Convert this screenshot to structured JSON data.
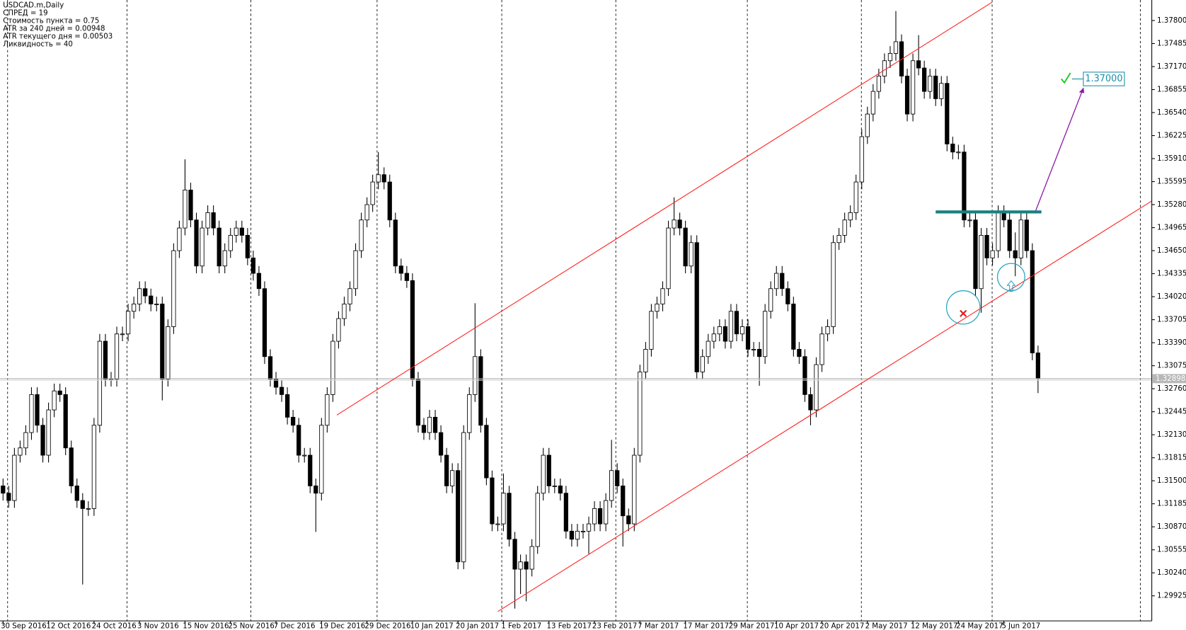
{
  "chart_data": {
    "type": "candlestick",
    "info_lines": [
      "USDCAD.m,Daily",
      "СПРЕД = 19",
      "Стоимость пункта = 0.75",
      "ATR за 240 дней = 0.00948",
      "ATR текущего дня = 0.00503",
      "Ликвидность = 40"
    ],
    "up_color": "#ffffff",
    "down_color": "#000000",
    "ylim": [
      1.29582,
      1.38081
    ],
    "yticks": [
      {
        "value": 1.378,
        "label": "1.37800"
      },
      {
        "value": 1.37485,
        "label": "1.37485"
      },
      {
        "value": 1.3717,
        "label": "1.37170"
      },
      {
        "value": 1.36855,
        "label": "1.36855"
      },
      {
        "value": 1.3654,
        "label": "1.36540"
      },
      {
        "value": 1.36225,
        "label": "1.36225"
      },
      {
        "value": 1.3591,
        "label": "1.35910"
      },
      {
        "value": 1.35595,
        "label": "1.35595"
      },
      {
        "value": 1.3528,
        "label": "1.35280"
      },
      {
        "value": 1.34965,
        "label": "1.34965"
      },
      {
        "value": 1.3465,
        "label": "1.34650"
      },
      {
        "value": 1.34335,
        "label": "1.34335"
      },
      {
        "value": 1.3402,
        "label": "1.34020"
      },
      {
        "value": 1.33705,
        "label": "1.33705"
      },
      {
        "value": 1.3339,
        "label": "1.33390"
      },
      {
        "value": 1.33075,
        "label": "1.33075"
      },
      {
        "value": 1.3276,
        "label": "1.32760"
      },
      {
        "value": 1.32445,
        "label": "1.32445"
      },
      {
        "value": 1.3213,
        "label": "1.32130"
      },
      {
        "value": 1.31815,
        "label": "1.31815"
      },
      {
        "value": 1.315,
        "label": "1.31500"
      },
      {
        "value": 1.31185,
        "label": "1.31185"
      },
      {
        "value": 1.3087,
        "label": "1.30870"
      },
      {
        "value": 1.30555,
        "label": "1.30555"
      },
      {
        "value": 1.3024,
        "label": "1.30240"
      },
      {
        "value": 1.29925,
        "label": "1.29925"
      }
    ],
    "categories": [
      "30 Sep 2016",
      null,
      null,
      null,
      null,
      null,
      null,
      null,
      "12 Oct 2016",
      null,
      null,
      null,
      null,
      null,
      null,
      null,
      "24 Oct 2016",
      null,
      null,
      null,
      null,
      null,
      null,
      null,
      "3 Nov 2016",
      null,
      null,
      null,
      null,
      null,
      null,
      null,
      "15 Nov 2016",
      null,
      null,
      null,
      null,
      null,
      null,
      null,
      "25 Nov 2016",
      null,
      null,
      null,
      null,
      null,
      null,
      null,
      "7 Dec 2016",
      null,
      null,
      null,
      null,
      null,
      null,
      null,
      "19 Dec 2016",
      null,
      null,
      null,
      null,
      null,
      null,
      null,
      "29 Dec 2016",
      null,
      null,
      null,
      null,
      null,
      null,
      null,
      "10 Jan 2017",
      null,
      null,
      null,
      null,
      null,
      null,
      null,
      "20 Jan 2017",
      null,
      null,
      null,
      null,
      null,
      null,
      null,
      "1 Feb 2017",
      null,
      null,
      null,
      null,
      null,
      null,
      null,
      "13 Feb 2017",
      null,
      null,
      null,
      null,
      null,
      null,
      null,
      "23 Feb 2017",
      null,
      null,
      null,
      null,
      null,
      null,
      null,
      "7 Mar 2017",
      null,
      null,
      null,
      null,
      null,
      null,
      null,
      "17 Mar 2017",
      null,
      null,
      null,
      null,
      null,
      null,
      null,
      "29 Mar 2017",
      null,
      null,
      null,
      null,
      null,
      null,
      null,
      "10 Apr 2017",
      null,
      null,
      null,
      null,
      null,
      null,
      null,
      "20 Apr 2017",
      null,
      null,
      null,
      null,
      null,
      null,
      null,
      "2 May 2017",
      null,
      null,
      null,
      null,
      null,
      null,
      null,
      "12 May 2017",
      null,
      null,
      null,
      null,
      null,
      null,
      null,
      "24 May 2017",
      null,
      null,
      null,
      null,
      null,
      null,
      null,
      "5 Jun 2017",
      null,
      null,
      null,
      null,
      null,
      null
    ],
    "ohlc": [
      [
        1.3143,
        1.3153,
        1.3123,
        1.3133
      ],
      [
        1.3133,
        1.3143,
        1.3113,
        1.3123
      ],
      [
        1.3123,
        1.3195,
        1.3113,
        1.3185
      ],
      [
        1.3185,
        1.3205,
        1.3175,
        1.3195
      ],
      [
        1.3195,
        1.3226,
        1.3185,
        1.3216
      ],
      [
        1.3216,
        1.3278,
        1.3206,
        1.3268
      ],
      [
        1.3268,
        1.3278,
        1.3216,
        1.3226
      ],
      [
        1.3226,
        1.3236,
        1.3175,
        1.3185
      ],
      [
        1.3185,
        1.3257,
        1.3175,
        1.3247
      ],
      [
        1.3247,
        1.3283,
        1.3237,
        1.3273
      ],
      [
        1.3273,
        1.3283,
        1.3258,
        1.3268
      ],
      [
        1.3268,
        1.3278,
        1.3185,
        1.3195
      ],
      [
        1.3195,
        1.3205,
        1.3133,
        1.3143
      ],
      [
        1.3143,
        1.3153,
        1.3113,
        1.3123
      ],
      [
        1.3123,
        1.3133,
        1.3008,
        1.3112
      ],
      [
        1.3112,
        1.3122,
        1.3102,
        1.3112
      ],
      [
        1.3112,
        1.3236,
        1.3102,
        1.3226
      ],
      [
        1.3226,
        1.3351,
        1.3216,
        1.3341
      ],
      [
        1.3341,
        1.3351,
        1.3279,
        1.3289
      ],
      [
        1.3289,
        1.3299,
        1.3279,
        1.3289
      ],
      [
        1.3289,
        1.3361,
        1.3279,
        1.3351
      ],
      [
        1.3351,
        1.3361,
        1.3341,
        1.3351
      ],
      [
        1.3351,
        1.3392,
        1.3341,
        1.3382
      ],
      [
        1.3382,
        1.3402,
        1.3372,
        1.3392
      ],
      [
        1.3392,
        1.3423,
        1.3382,
        1.3413
      ],
      [
        1.3413,
        1.3423,
        1.3393,
        1.3403
      ],
      [
        1.3403,
        1.3413,
        1.3382,
        1.3392
      ],
      [
        1.3392,
        1.3402,
        1.3382,
        1.3392
      ],
      [
        1.3392,
        1.3402,
        1.326,
        1.3289
      ],
      [
        1.3289,
        1.3371,
        1.3279,
        1.3361
      ],
      [
        1.3361,
        1.3475,
        1.3351,
        1.3465
      ],
      [
        1.3465,
        1.3506,
        1.3455,
        1.3496
      ],
      [
        1.3496,
        1.359,
        1.3486,
        1.3548
      ],
      [
        1.3548,
        1.3558,
        1.3497,
        1.3507
      ],
      [
        1.3507,
        1.3517,
        1.3434,
        1.3444
      ],
      [
        1.3444,
        1.3506,
        1.3434,
        1.3496
      ],
      [
        1.3496,
        1.3527,
        1.3486,
        1.3517
      ],
      [
        1.3517,
        1.3527,
        1.3486,
        1.3496
      ],
      [
        1.3496,
        1.3506,
        1.3434,
        1.3444
      ],
      [
        1.3444,
        1.3475,
        1.3434,
        1.3465
      ],
      [
        1.3465,
        1.3496,
        1.3455,
        1.3486
      ],
      [
        1.3486,
        1.3506,
        1.3476,
        1.3496
      ],
      [
        1.3496,
        1.3506,
        1.3476,
        1.3486
      ],
      [
        1.3486,
        1.3496,
        1.3445,
        1.3455
      ],
      [
        1.3455,
        1.3465,
        1.3424,
        1.3434
      ],
      [
        1.3434,
        1.3444,
        1.3403,
        1.3413
      ],
      [
        1.3413,
        1.3423,
        1.331,
        1.332
      ],
      [
        1.332,
        1.333,
        1.3279,
        1.3289
      ],
      [
        1.3289,
        1.3299,
        1.3268,
        1.3278
      ],
      [
        1.3278,
        1.3288,
        1.3258,
        1.3268
      ],
      [
        1.3268,
        1.3278,
        1.3227,
        1.3237
      ],
      [
        1.3237,
        1.3247,
        1.3216,
        1.3226
      ],
      [
        1.3226,
        1.3236,
        1.3175,
        1.3185
      ],
      [
        1.3185,
        1.3195,
        1.3175,
        1.3185
      ],
      [
        1.3185,
        1.3195,
        1.3133,
        1.3143
      ],
      [
        1.3143,
        1.3153,
        1.308,
        1.3133
      ],
      [
        1.3133,
        1.3236,
        1.3123,
        1.3226
      ],
      [
        1.3226,
        1.3278,
        1.3216,
        1.3268
      ],
      [
        1.3268,
        1.3351,
        1.3258,
        1.3341
      ],
      [
        1.3341,
        1.3382,
        1.3331,
        1.3372
      ],
      [
        1.3372,
        1.3402,
        1.3362,
        1.3392
      ],
      [
        1.3392,
        1.3423,
        1.3382,
        1.3413
      ],
      [
        1.3413,
        1.3475,
        1.3403,
        1.3465
      ],
      [
        1.3465,
        1.3517,
        1.3455,
        1.3507
      ],
      [
        1.3507,
        1.3538,
        1.3497,
        1.3528
      ],
      [
        1.3528,
        1.3569,
        1.3518,
        1.3559
      ],
      [
        1.3559,
        1.36,
        1.3549,
        1.3569
      ],
      [
        1.3569,
        1.3579,
        1.3549,
        1.3559
      ],
      [
        1.3559,
        1.3569,
        1.3497,
        1.3507
      ],
      [
        1.3507,
        1.3517,
        1.3434,
        1.3444
      ],
      [
        1.3444,
        1.3454,
        1.3424,
        1.3434
      ],
      [
        1.3434,
        1.3444,
        1.3414,
        1.3424
      ],
      [
        1.3424,
        1.3434,
        1.3279,
        1.3289
      ],
      [
        1.3289,
        1.3299,
        1.3216,
        1.3226
      ],
      [
        1.3226,
        1.3236,
        1.3206,
        1.3216
      ],
      [
        1.3216,
        1.3247,
        1.3206,
        1.3237
      ],
      [
        1.3237,
        1.3247,
        1.3206,
        1.3216
      ],
      [
        1.3216,
        1.3226,
        1.3175,
        1.3185
      ],
      [
        1.3185,
        1.3195,
        1.3133,
        1.3143
      ],
      [
        1.3143,
        1.3174,
        1.3133,
        1.3164
      ],
      [
        1.3164,
        1.3174,
        1.3029,
        1.3039
      ],
      [
        1.3039,
        1.3226,
        1.3029,
        1.3216
      ],
      [
        1.3216,
        1.3278,
        1.3206,
        1.3268
      ],
      [
        1.3268,
        1.3393,
        1.3258,
        1.332
      ],
      [
        1.332,
        1.333,
        1.3216,
        1.3226
      ],
      [
        1.3226,
        1.3236,
        1.3144,
        1.3154
      ],
      [
        1.3154,
        1.3164,
        1.3081,
        1.3091
      ],
      [
        1.3091,
        1.3101,
        1.3081,
        1.3091
      ],
      [
        1.3091,
        1.316,
        1.3081,
        1.3133
      ],
      [
        1.3133,
        1.3143,
        1.306,
        1.307
      ],
      [
        1.307,
        1.308,
        1.2975,
        1.3029
      ],
      [
        1.3029,
        1.3049,
        1.2995,
        1.3039
      ],
      [
        1.3039,
        1.3049,
        1.2985,
        1.3029
      ],
      [
        1.3029,
        1.307,
        1.3019,
        1.306
      ],
      [
        1.306,
        1.3143,
        1.305,
        1.3133
      ],
      [
        1.3133,
        1.3195,
        1.3123,
        1.3185
      ],
      [
        1.3185,
        1.3195,
        1.3133,
        1.3143
      ],
      [
        1.3143,
        1.3153,
        1.3133,
        1.3143
      ],
      [
        1.3143,
        1.3153,
        1.3123,
        1.3133
      ],
      [
        1.3133,
        1.3143,
        1.3071,
        1.3081
      ],
      [
        1.3081,
        1.3091,
        1.306,
        1.307
      ],
      [
        1.307,
        1.3091,
        1.306,
        1.3081
      ],
      [
        1.3081,
        1.3091,
        1.3071,
        1.3081
      ],
      [
        1.3081,
        1.3101,
        1.305,
        1.3091
      ],
      [
        1.3091,
        1.3122,
        1.3081,
        1.3112
      ],
      [
        1.3112,
        1.3122,
        1.3081,
        1.3091
      ],
      [
        1.3091,
        1.3133,
        1.3081,
        1.3123
      ],
      [
        1.3123,
        1.3206,
        1.3113,
        1.3164
      ],
      [
        1.3164,
        1.3174,
        1.3133,
        1.3143
      ],
      [
        1.3143,
        1.3153,
        1.306,
        1.3102
      ],
      [
        1.3102,
        1.3112,
        1.3081,
        1.3091
      ],
      [
        1.3091,
        1.3195,
        1.3081,
        1.3185
      ],
      [
        1.3185,
        1.3309,
        1.3175,
        1.3299
      ],
      [
        1.3299,
        1.334,
        1.3289,
        1.333
      ],
      [
        1.333,
        1.3392,
        1.332,
        1.3382
      ],
      [
        1.3382,
        1.3402,
        1.3372,
        1.3392
      ],
      [
        1.3392,
        1.3423,
        1.3382,
        1.3413
      ],
      [
        1.3413,
        1.3506,
        1.3403,
        1.3496
      ],
      [
        1.3496,
        1.3538,
        1.3486,
        1.3507
      ],
      [
        1.3507,
        1.3517,
        1.3486,
        1.3496
      ],
      [
        1.3496,
        1.3506,
        1.3434,
        1.3444
      ],
      [
        1.3444,
        1.3486,
        1.3434,
        1.3476
      ],
      [
        1.3476,
        1.3486,
        1.3289,
        1.3299
      ],
      [
        1.3299,
        1.333,
        1.3289,
        1.332
      ],
      [
        1.332,
        1.3351,
        1.331,
        1.3341
      ],
      [
        1.3341,
        1.3361,
        1.3331,
        1.3351
      ],
      [
        1.3351,
        1.3371,
        1.3341,
        1.3361
      ],
      [
        1.3361,
        1.3371,
        1.3331,
        1.3341
      ],
      [
        1.3341,
        1.3392,
        1.3331,
        1.3382
      ],
      [
        1.3382,
        1.3392,
        1.3341,
        1.3351
      ],
      [
        1.3351,
        1.3371,
        1.3341,
        1.3361
      ],
      [
        1.3361,
        1.3371,
        1.332,
        1.333
      ],
      [
        1.333,
        1.334,
        1.332,
        1.333
      ],
      [
        1.333,
        1.334,
        1.328,
        1.332
      ],
      [
        1.332,
        1.3392,
        1.331,
        1.3382
      ],
      [
        1.3382,
        1.3423,
        1.3372,
        1.3413
      ],
      [
        1.3413,
        1.3444,
        1.3403,
        1.3434
      ],
      [
        1.3434,
        1.3444,
        1.3403,
        1.3413
      ],
      [
        1.3413,
        1.3423,
        1.3382,
        1.3392
      ],
      [
        1.3392,
        1.3402,
        1.332,
        1.333
      ],
      [
        1.333,
        1.334,
        1.331,
        1.332
      ],
      [
        1.332,
        1.333,
        1.3258,
        1.3268
      ],
      [
        1.3268,
        1.3278,
        1.3226,
        1.3247
      ],
      [
        1.3247,
        1.3319,
        1.3237,
        1.3309
      ],
      [
        1.3309,
        1.3361,
        1.3299,
        1.3351
      ],
      [
        1.3351,
        1.3371,
        1.3341,
        1.3361
      ],
      [
        1.3361,
        1.3486,
        1.3351,
        1.3476
      ],
      [
        1.3476,
        1.3496,
        1.3466,
        1.3486
      ],
      [
        1.3486,
        1.3517,
        1.3476,
        1.3507
      ],
      [
        1.3507,
        1.3527,
        1.3497,
        1.3517
      ],
      [
        1.3517,
        1.3569,
        1.3507,
        1.3559
      ],
      [
        1.3559,
        1.3631,
        1.3549,
        1.3621
      ],
      [
        1.3621,
        1.3662,
        1.3611,
        1.3652
      ],
      [
        1.3652,
        1.3693,
        1.3642,
        1.3683
      ],
      [
        1.3683,
        1.3714,
        1.3673,
        1.3704
      ],
      [
        1.3704,
        1.3735,
        1.3694,
        1.3725
      ],
      [
        1.3725,
        1.3745,
        1.3715,
        1.3735
      ],
      [
        1.3735,
        1.3793,
        1.3725,
        1.3751
      ],
      [
        1.3751,
        1.3761,
        1.3694,
        1.3704
      ],
      [
        1.3704,
        1.3714,
        1.3642,
        1.3652
      ],
      [
        1.3652,
        1.3735,
        1.3642,
        1.3725
      ],
      [
        1.3725,
        1.376,
        1.3705,
        1.3715
      ],
      [
        1.3715,
        1.3725,
        1.3673,
        1.3683
      ],
      [
        1.3683,
        1.3714,
        1.3673,
        1.3704
      ],
      [
        1.3704,
        1.3714,
        1.3663,
        1.3673
      ],
      [
        1.3673,
        1.3704,
        1.3663,
        1.3694
      ],
      [
        1.3694,
        1.3704,
        1.3601,
        1.3611
      ],
      [
        1.3611,
        1.3621,
        1.359,
        1.36
      ],
      [
        1.36,
        1.361,
        1.359,
        1.36
      ],
      [
        1.36,
        1.361,
        1.3497,
        1.3507
      ],
      [
        1.3507,
        1.3517,
        1.3497,
        1.3507
      ],
      [
        1.3507,
        1.3517,
        1.3403,
        1.3413
      ],
      [
        1.3413,
        1.3496,
        1.338,
        1.3486
      ],
      [
        1.3486,
        1.3496,
        1.3445,
        1.3455
      ],
      [
        1.3455,
        1.3475,
        1.3445,
        1.3465
      ],
      [
        1.3465,
        1.3527,
        1.3455,
        1.3517
      ],
      [
        1.3517,
        1.3527,
        1.3497,
        1.3507
      ],
      [
        1.3507,
        1.3517,
        1.3455,
        1.3465
      ],
      [
        1.3465,
        1.349,
        1.343,
        1.3455
      ],
      [
        1.3455,
        1.3517,
        1.3445,
        1.3507
      ],
      [
        1.3507,
        1.3517,
        1.3455,
        1.3465
      ],
      [
        1.3465,
        1.3475,
        1.3315,
        1.3325
      ],
      [
        1.3325,
        1.3335,
        1.327,
        1.32898
      ]
    ],
    "channel_upper": {
      "x": [
        58.7,
        173.9
      ],
      "y": [
        1.324,
        1.3805
      ]
    },
    "channel_lower": {
      "x": [
        87.0,
        202.0
      ],
      "y": [
        1.2971,
        1.3533
      ]
    },
    "resistance": {
      "x": [
        164,
        182.6
      ],
      "y": 1.3518
    },
    "arrow": {
      "x": [
        181.6,
        190.0
      ],
      "y": [
        1.352,
        1.3688
      ]
    },
    "target": {
      "value": 1.37,
      "label": "1.37000"
    }
  }
}
